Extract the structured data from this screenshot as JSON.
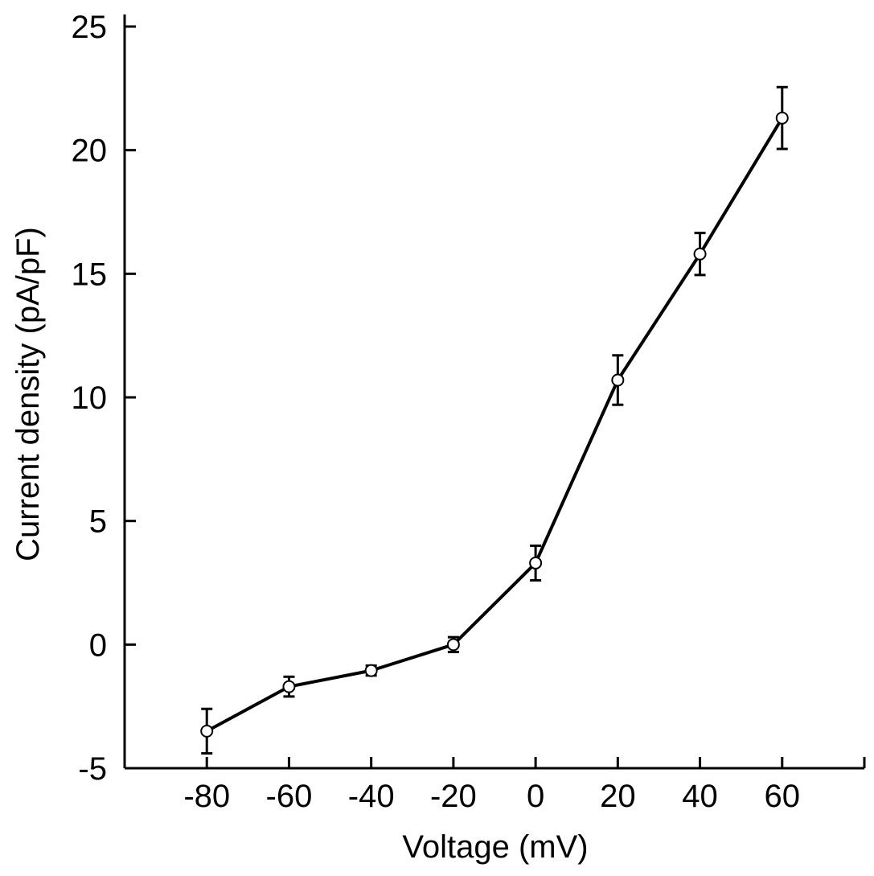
{
  "chart_data": {
    "type": "line",
    "title": "",
    "xlabel": "Voltage (mV)",
    "ylabel": "Current density (pA/pF)",
    "x": [
      -80,
      -60,
      -40,
      -20,
      0,
      20,
      40,
      60
    ],
    "series": [
      {
        "values": [
          -3.5,
          -1.7,
          -1.05,
          0.0,
          3.3,
          10.7,
          15.8,
          21.3
        ],
        "errors": [
          0.9,
          0.4,
          0.2,
          0.3,
          0.7,
          1.0,
          0.85,
          1.25
        ]
      }
    ],
    "xlim": [
      -100,
      80
    ],
    "ylim": [
      -5,
      25
    ],
    "xticks": [
      -80,
      -60,
      -40,
      -20,
      0,
      20,
      40,
      60
    ],
    "xtick_labels": [
      "-80",
      "-60",
      "-40",
      "-20",
      "0",
      "20",
      "40",
      "60"
    ],
    "yticks": [
      -5,
      0,
      5,
      10,
      15,
      20,
      25
    ],
    "ytick_labels": [
      "-5",
      "0",
      "5",
      "10",
      "15",
      "20",
      "25"
    ],
    "grid": false,
    "legend": "none",
    "colors": {
      "line": "#000000",
      "marker_fill": "#ffffff",
      "axis": "#000000"
    }
  }
}
